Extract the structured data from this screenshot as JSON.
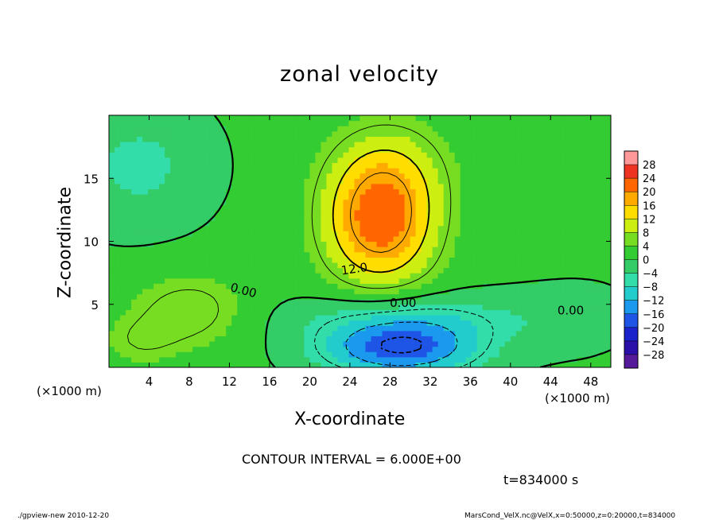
{
  "chart_data": {
    "type": "heatmap",
    "title": "zonal velocity",
    "xlabel": "X-coordinate",
    "ylabel": "Z-coordinate",
    "x_unit": "(×1000 m)",
    "y_unit": "(×1000 m)",
    "xlim": [
      0,
      50
    ],
    "ylim": [
      0,
      20
    ],
    "x_ticks": [
      4,
      8,
      12,
      16,
      20,
      24,
      28,
      32,
      36,
      40,
      44,
      48
    ],
    "y_ticks": [
      5,
      10,
      15
    ],
    "colorbar": {
      "labels": [
        "28",
        "24",
        "20",
        "16",
        "12",
        "8",
        "4",
        "0",
        "−4",
        "−8",
        "−12",
        "−16",
        "−20",
        "−24",
        "−28"
      ],
      "range": [
        -30,
        30
      ]
    },
    "contour_labels": [
      "0.00",
      "12.0",
      "0.00",
      "0.00"
    ],
    "field_peaks": [
      {
        "x": 27,
        "z": 11.5,
        "value": 22
      },
      {
        "x": 29,
        "z": 1.5,
        "value": -18
      },
      {
        "x": 8,
        "z": 4.5,
        "value": 8
      }
    ]
  },
  "footer": {
    "contour_interval": "CONTOUR INTERVAL = 6.000E+00",
    "time": "t=834000 s",
    "program": "./gpview-new  2010-12-20",
    "source": "MarsCond_VelX.nc@VelX,x=0:50000,z=0:20000,t=834000"
  },
  "colors": {
    "positive_max": "#ee3322",
    "zero": "#33cc33",
    "negative_max": "#2211cc"
  }
}
